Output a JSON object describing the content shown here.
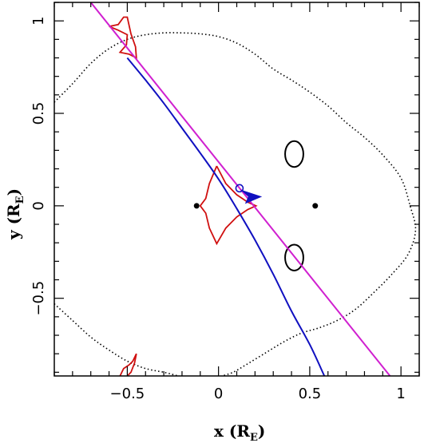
{
  "chart_data": {
    "type": "line",
    "title": "",
    "xlabel": "x (R",
    "xlabel_sub": "E",
    "xlabel_close": ")",
    "ylabel": "y (R",
    "ylabel_sub": "E",
    "ylabel_close": ")",
    "xlim": [
      -0.9,
      1.1
    ],
    "ylim": [
      -0.92,
      1.1
    ],
    "x_ticks": [
      {
        "value": -0.5,
        "label": "−0.5"
      },
      {
        "value": 0,
        "label": "0"
      },
      {
        "value": 0.5,
        "label": "0.5"
      },
      {
        "value": 1,
        "label": "1"
      }
    ],
    "y_ticks": [
      {
        "value": -0.5,
        "label": "−0.5"
      },
      {
        "value": 0,
        "label": "0"
      },
      {
        "value": 0.5,
        "label": "0.5"
      },
      {
        "value": 1,
        "label": "1"
      }
    ],
    "grid": false,
    "colors": {
      "trajectory_straight": "#d020d0",
      "trajectory_curved": "#1010c0",
      "caustic": "#d01010",
      "critical_curve": "#000000",
      "source_marker": "#1010c0"
    },
    "lenses": [
      {
        "x": -0.12,
        "y": 0.0
      },
      {
        "x": 0.53,
        "y": 0.0
      }
    ],
    "straight_trajectory": [
      {
        "x": -0.7,
        "y": 1.1
      },
      {
        "x": 0.94,
        "y": -0.92
      }
    ],
    "curved_trajectory": [
      {
        "x": -0.5,
        "y": 0.8
      },
      {
        "x": -0.4,
        "y": 0.68
      },
      {
        "x": -0.3,
        "y": 0.555
      },
      {
        "x": -0.2,
        "y": 0.42
      },
      {
        "x": -0.1,
        "y": 0.285
      },
      {
        "x": 0.0,
        "y": 0.145
      },
      {
        "x": 0.1,
        "y": -0.015
      },
      {
        "x": 0.2,
        "y": -0.185
      },
      {
        "x": 0.3,
        "y": -0.37
      },
      {
        "x": 0.4,
        "y": -0.57
      },
      {
        "x": 0.5,
        "y": -0.75
      },
      {
        "x": 0.58,
        "y": -0.92
      }
    ],
    "source_position": {
      "x": 0.115,
      "y": 0.095
    },
    "direction_arrow": {
      "x": 0.145,
      "y": 0.045,
      "dx": 0.07,
      "dy": -0.09
    },
    "outer_critical_curve": [
      {
        "x": -0.9,
        "y": 0.56
      },
      {
        "x": -0.8,
        "y": 0.66
      },
      {
        "x": -0.7,
        "y": 0.77
      },
      {
        "x": -0.6,
        "y": 0.85
      },
      {
        "x": -0.5,
        "y": 0.9
      },
      {
        "x": -0.4,
        "y": 0.925
      },
      {
        "x": -0.3,
        "y": 0.935
      },
      {
        "x": -0.2,
        "y": 0.935
      },
      {
        "x": -0.1,
        "y": 0.93
      },
      {
        "x": 0.0,
        "y": 0.915
      },
      {
        "x": 0.1,
        "y": 0.88
      },
      {
        "x": 0.2,
        "y": 0.82
      },
      {
        "x": 0.3,
        "y": 0.74
      },
      {
        "x": 0.4,
        "y": 0.68
      },
      {
        "x": 0.5,
        "y": 0.615
      },
      {
        "x": 0.6,
        "y": 0.54
      },
      {
        "x": 0.7,
        "y": 0.45
      },
      {
        "x": 0.8,
        "y": 0.37
      },
      {
        "x": 0.9,
        "y": 0.275
      },
      {
        "x": 1.0,
        "y": 0.15
      },
      {
        "x": 1.05,
        "y": 0.0
      },
      {
        "x": 1.08,
        "y": -0.13
      },
      {
        "x": 1.04,
        "y": -0.26
      },
      {
        "x": 0.95,
        "y": -0.37
      },
      {
        "x": 0.85,
        "y": -0.47
      },
      {
        "x": 0.75,
        "y": -0.56
      },
      {
        "x": 0.65,
        "y": -0.62
      },
      {
        "x": 0.55,
        "y": -0.66
      },
      {
        "x": 0.45,
        "y": -0.69
      },
      {
        "x": 0.35,
        "y": -0.74
      },
      {
        "x": 0.25,
        "y": -0.8
      },
      {
        "x": 0.15,
        "y": -0.86
      },
      {
        "x": 0.08,
        "y": -0.9
      },
      {
        "x": 0.02,
        "y": -0.92
      }
    ],
    "outer_critical_curve_left": [
      {
        "x": -0.9,
        "y": -0.53
      },
      {
        "x": -0.8,
        "y": -0.62
      },
      {
        "x": -0.7,
        "y": -0.71
      },
      {
        "x": -0.6,
        "y": -0.78
      },
      {
        "x": -0.5,
        "y": -0.84
      },
      {
        "x": -0.4,
        "y": -0.88
      },
      {
        "x": -0.3,
        "y": -0.9
      },
      {
        "x": -0.22,
        "y": -0.92
      }
    ],
    "inner_critical_curves": [
      {
        "cx": 0.415,
        "cy": 0.28,
        "rx": 0.05,
        "ry": 0.07
      },
      {
        "cx": 0.415,
        "cy": -0.28,
        "rx": 0.05,
        "ry": 0.07
      }
    ],
    "central_caustic": [
      {
        "x": -0.01,
        "y": 0.215
      },
      {
        "x": -0.05,
        "y": 0.12
      },
      {
        "x": -0.07,
        "y": 0.04
      },
      {
        "x": -0.1,
        "y": 0.0
      },
      {
        "x": -0.07,
        "y": -0.04
      },
      {
        "x": -0.05,
        "y": -0.12
      },
      {
        "x": -0.01,
        "y": -0.205
      },
      {
        "x": 0.04,
        "y": -0.12
      },
      {
        "x": 0.1,
        "y": -0.06
      },
      {
        "x": 0.16,
        "y": -0.02
      },
      {
        "x": 0.205,
        "y": 0.0
      },
      {
        "x": 0.16,
        "y": 0.02
      },
      {
        "x": 0.1,
        "y": 0.06
      },
      {
        "x": 0.04,
        "y": 0.12
      },
      {
        "x": -0.01,
        "y": 0.215
      }
    ],
    "upper_caustic": [
      {
        "x": -0.6,
        "y": 0.97
      },
      {
        "x": -0.55,
        "y": 0.95
      },
      {
        "x": -0.5,
        "y": 0.925
      },
      {
        "x": -0.505,
        "y": 0.87
      },
      {
        "x": -0.54,
        "y": 0.83
      },
      {
        "x": -0.49,
        "y": 0.82
      },
      {
        "x": -0.45,
        "y": 0.8
      },
      {
        "x": -0.455,
        "y": 0.86
      },
      {
        "x": -0.48,
        "y": 0.93
      },
      {
        "x": -0.5,
        "y": 1.02
      },
      {
        "x": -0.52,
        "y": 1.02
      },
      {
        "x": -0.55,
        "y": 0.98
      },
      {
        "x": -0.6,
        "y": 0.97
      }
    ],
    "lower_caustic": [
      {
        "x": -0.54,
        "y": -0.92
      },
      {
        "x": -0.52,
        "y": -0.88
      },
      {
        "x": -0.49,
        "y": -0.86
      },
      {
        "x": -0.47,
        "y": -0.84
      },
      {
        "x": -0.45,
        "y": -0.8
      },
      {
        "x": -0.46,
        "y": -0.85
      },
      {
        "x": -0.48,
        "y": -0.9
      },
      {
        "x": -0.5,
        "y": -0.92
      }
    ]
  }
}
